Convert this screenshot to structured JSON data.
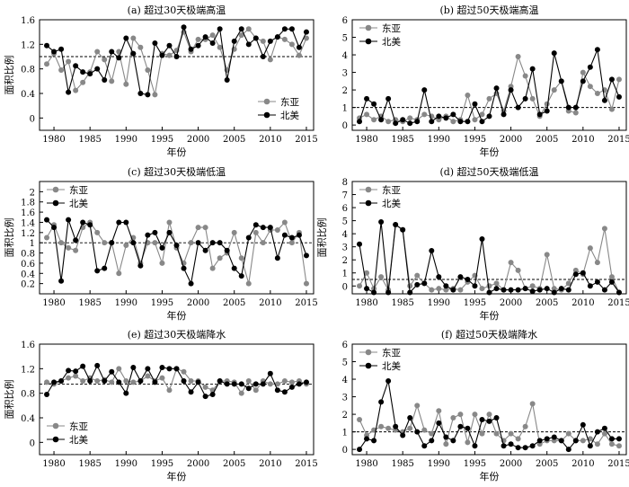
{
  "chart_data": [
    {
      "type": "line",
      "title": "(a) 超过30天极端高温",
      "xlabel": "年份",
      "ylabel": "面积比例",
      "xlim": [
        1978,
        2016
      ],
      "ylim": [
        -0.2,
        1.6
      ],
      "xticks": [
        1980,
        1985,
        1990,
        1995,
        2000,
        2005,
        2010,
        2015
      ],
      "yticks": [
        0,
        0.4,
        0.8,
        1.2,
        1.6
      ],
      "reference_line": 1.0,
      "legend": "bottom-right",
      "x": [
        1979,
        1980,
        1981,
        1982,
        1983,
        1984,
        1985,
        1986,
        1987,
        1988,
        1989,
        1990,
        1991,
        1992,
        1993,
        1994,
        1995,
        1996,
        1997,
        1998,
        1999,
        2000,
        2001,
        2002,
        2003,
        2004,
        2005,
        2006,
        2007,
        2008,
        2009,
        2010,
        2011,
        2012,
        2013,
        2014,
        2015
      ],
      "series": [
        {
          "name": "东亚",
          "color": "#888888",
          "values": [
            0.88,
            1.05,
            0.78,
            0.92,
            0.45,
            0.58,
            0.75,
            1.08,
            0.95,
            0.6,
            1.08,
            0.55,
            1.3,
            1.15,
            0.78,
            0.38,
            1.05,
            1.02,
            1.1,
            1.4,
            1.08,
            1.28,
            1.28,
            1.35,
            1.15,
            0.78,
            1.12,
            1.35,
            1.45,
            1.3,
            1.25,
            0.95,
            1.32,
            1.28,
            1.2,
            1.02,
            1.3
          ]
        },
        {
          "name": "北美",
          "color": "#000000",
          "values": [
            1.18,
            1.08,
            1.12,
            0.42,
            0.85,
            0.75,
            0.72,
            0.8,
            0.62,
            1.08,
            0.98,
            1.3,
            1.05,
            0.4,
            0.38,
            1.22,
            1.02,
            1.18,
            1.0,
            1.48,
            1.12,
            1.18,
            1.32,
            1.22,
            1.45,
            0.62,
            1.25,
            1.45,
            1.2,
            1.3,
            1.0,
            1.25,
            1.32,
            1.45,
            1.45,
            1.15,
            1.4
          ]
        }
      ]
    },
    {
      "type": "line",
      "title": "(b) 超过50天极端高温",
      "xlabel": "年份",
      "ylabel": "",
      "xlim": [
        1978,
        2016
      ],
      "ylim": [
        -0.3,
        6
      ],
      "xticks": [
        1980,
        1985,
        1990,
        1995,
        2000,
        2005,
        2010,
        2015
      ],
      "yticks": [
        0,
        1,
        2,
        3,
        4,
        5,
        6
      ],
      "reference_line": 1.0,
      "legend": "top-left",
      "x": [
        1979,
        1980,
        1981,
        1982,
        1983,
        1984,
        1985,
        1986,
        1987,
        1988,
        1989,
        1990,
        1991,
        1992,
        1993,
        1994,
        1995,
        1996,
        1997,
        1998,
        1999,
        2000,
        2001,
        2002,
        2003,
        2004,
        2005,
        2006,
        2007,
        2008,
        2009,
        2010,
        2011,
        2012,
        2013,
        2014,
        2015
      ],
      "series": [
        {
          "name": "东亚",
          "color": "#888888",
          "values": [
            0.4,
            0.6,
            0.3,
            0.5,
            0.2,
            0.3,
            0.2,
            0.4,
            0.3,
            0.6,
            0.5,
            0.3,
            0.5,
            0.2,
            0.3,
            1.7,
            0.3,
            0.6,
            1.5,
            1.8,
            0.8,
            2.2,
            3.9,
            2.8,
            1.5,
            0.5,
            1.2,
            2.0,
            2.5,
            0.8,
            0.7,
            3.0,
            2.2,
            1.8,
            2.0,
            0.9,
            2.6
          ]
        },
        {
          "name": "北美",
          "color": "#000000",
          "values": [
            0.2,
            1.5,
            1.2,
            0.3,
            1.5,
            0.1,
            0.3,
            0.1,
            0.2,
            2.0,
            0.2,
            0.5,
            0.4,
            0.6,
            0.2,
            0.2,
            1.2,
            0.2,
            0.5,
            2.1,
            0.6,
            2.0,
            1.0,
            1.5,
            3.2,
            0.6,
            0.8,
            4.1,
            2.5,
            1.0,
            1.0,
            2.5,
            3.3,
            4.3,
            1.4,
            2.6,
            1.6
          ]
        }
      ]
    },
    {
      "type": "line",
      "title": "(c) 超过30天极端低温",
      "xlabel": "年份",
      "ylabel": "面积比例",
      "xlim": [
        1978,
        2016
      ],
      "ylim": [
        0,
        2.2
      ],
      "xticks": [
        1980,
        1985,
        1990,
        1995,
        2000,
        2005,
        2010,
        2015
      ],
      "yticks": [
        0.2,
        0.4,
        0.6,
        0.8,
        1.0,
        1.2,
        1.4,
        1.6,
        1.8,
        2.0
      ],
      "reference_line": 1.0,
      "legend": "top-left",
      "x": [
        1979,
        1980,
        1981,
        1982,
        1983,
        1984,
        1985,
        1986,
        1987,
        1988,
        1989,
        1990,
        1991,
        1992,
        1993,
        1994,
        1995,
        1996,
        1997,
        1998,
        1999,
        2000,
        2001,
        2002,
        2003,
        2004,
        2005,
        2006,
        2007,
        2008,
        2009,
        2010,
        2011,
        2012,
        2013,
        2014,
        2015
      ],
      "series": [
        {
          "name": "东亚",
          "color": "#888888",
          "values": [
            1.1,
            1.35,
            1.0,
            0.9,
            0.85,
            1.3,
            1.4,
            1.2,
            1.0,
            1.0,
            0.4,
            0.95,
            1.1,
            0.6,
            1.0,
            1.0,
            0.6,
            1.4,
            0.9,
            0.6,
            1.0,
            1.3,
            1.3,
            0.5,
            0.7,
            0.8,
            1.2,
            0.7,
            0.2,
            1.2,
            1.0,
            1.25,
            1.25,
            1.4,
            1.0,
            1.2,
            0.2
          ]
        },
        {
          "name": "北美",
          "color": "#000000",
          "values": [
            1.45,
            1.3,
            0.25,
            1.45,
            1.05,
            1.4,
            1.35,
            0.45,
            0.5,
            1.0,
            1.4,
            1.4,
            1.0,
            0.55,
            1.15,
            1.2,
            0.9,
            1.2,
            0.95,
            0.5,
            0.2,
            1.0,
            0.85,
            1.0,
            1.0,
            0.85,
            0.5,
            0.35,
            1.1,
            1.35,
            1.3,
            1.3,
            0.7,
            1.15,
            1.1,
            1.15,
            0.75
          ]
        }
      ]
    },
    {
      "type": "line",
      "title": "(d) 超过50天极端低温",
      "xlabel": "年份",
      "ylabel": "面积比例",
      "xlim": [
        1978,
        2016
      ],
      "ylim": [
        -0.6,
        8
      ],
      "xticks": [
        1980,
        1985,
        1990,
        1995,
        2000,
        2005,
        2010,
        2015
      ],
      "yticks": [
        0,
        1,
        2,
        3,
        4,
        5,
        6,
        7,
        8
      ],
      "reference_line": 0.5,
      "legend": "top-left",
      "x": [
        1979,
        1980,
        1981,
        1982,
        1983,
        1984,
        1985,
        1986,
        1987,
        1988,
        1989,
        1990,
        1991,
        1992,
        1993,
        1994,
        1995,
        1996,
        1997,
        1998,
        1999,
        2000,
        2001,
        2002,
        2003,
        2004,
        2005,
        2006,
        2007,
        2008,
        2009,
        2010,
        2011,
        2012,
        2013,
        2014,
        2015
      ],
      "series": [
        {
          "name": "东亚",
          "color": "#888888",
          "values": [
            0.0,
            1.0,
            -0.2,
            0.7,
            -0.3,
            4.7,
            4.3,
            0.0,
            0.8,
            0.2,
            -0.3,
            -0.2,
            -0.3,
            -0.2,
            -0.3,
            0.3,
            0.8,
            -0.2,
            0.0,
            0.2,
            -0.3,
            1.8,
            1.2,
            -0.2,
            0.0,
            -0.2,
            2.4,
            -0.2,
            -0.3,
            0.2,
            1.2,
            0.9,
            2.9,
            1.8,
            4.4,
            0.7,
            -0.5
          ]
        },
        {
          "name": "北美",
          "color": "#000000",
          "values": [
            3.2,
            -0.2,
            -0.5,
            4.9,
            -0.5,
            4.7,
            4.3,
            -0.5,
            0.1,
            0.2,
            2.7,
            0.7,
            0.0,
            -0.3,
            0.7,
            0.5,
            0.0,
            3.6,
            -0.5,
            -0.2,
            -0.3,
            -0.3,
            -0.3,
            -0.2,
            -0.4,
            -0.3,
            -0.2,
            -0.5,
            -0.2,
            -0.3,
            0.9,
            1.0,
            0.0,
            0.3,
            -0.3,
            0.3,
            -0.5
          ]
        }
      ]
    },
    {
      "type": "line",
      "title": "(e) 超过30天极端降水",
      "xlabel": "年份",
      "ylabel": "面积比例",
      "xlim": [
        1978,
        2016
      ],
      "ylim": [
        -0.2,
        1.6
      ],
      "xticks": [
        1980,
        1985,
        1990,
        1995,
        2000,
        2005,
        2010,
        2015
      ],
      "yticks": [
        0,
        0.4,
        0.8,
        1.2,
        1.6
      ],
      "reference_line": 0.95,
      "legend": "bottom-left",
      "x": [
        1979,
        1980,
        1981,
        1982,
        1983,
        1984,
        1985,
        1986,
        1987,
        1988,
        1989,
        1990,
        1991,
        1992,
        1993,
        1994,
        1995,
        1996,
        1997,
        1998,
        1999,
        2000,
        2001,
        2002,
        2003,
        2004,
        2005,
        2006,
        2007,
        2008,
        2009,
        2010,
        2011,
        2012,
        2013,
        2014,
        2015
      ],
      "series": [
        {
          "name": "东亚",
          "color": "#888888",
          "values": [
            0.98,
            0.95,
            1.0,
            1.05,
            1.08,
            1.0,
            1.05,
            1.0,
            1.02,
            0.98,
            1.2,
            1.0,
            0.98,
            1.0,
            1.08,
            1.0,
            1.05,
            0.85,
            1.2,
            1.15,
            1.0,
            1.0,
            0.9,
            0.85,
            1.0,
            1.0,
            0.98,
            0.8,
            1.0,
            0.85,
            1.0,
            0.95,
            0.95,
            1.0,
            0.98,
            1.0,
            0.95
          ]
        },
        {
          "name": "北美",
          "color": "#000000",
          "values": [
            0.78,
            0.98,
            1.0,
            1.17,
            1.16,
            1.24,
            1.0,
            1.25,
            1.0,
            1.15,
            0.98,
            0.8,
            1.22,
            1.0,
            1.2,
            0.98,
            1.22,
            1.2,
            1.2,
            1.0,
            0.82,
            0.98,
            0.75,
            0.78,
            1.0,
            0.95,
            0.95,
            0.95,
            0.88,
            0.95,
            0.95,
            1.12,
            0.85,
            0.82,
            0.9,
            0.95,
            0.98
          ]
        }
      ]
    },
    {
      "type": "line",
      "title": "(f) 超过50天极端降水",
      "xlabel": "年份",
      "ylabel": "",
      "xlim": [
        1978,
        2016
      ],
      "ylim": [
        -0.3,
        6
      ],
      "xticks": [
        1980,
        1985,
        1990,
        1995,
        2000,
        2005,
        2010,
        2015
      ],
      "yticks": [
        0,
        1,
        2,
        3,
        4,
        5,
        6
      ],
      "reference_line": 1.0,
      "legend": "top-left",
      "x": [
        1979,
        1980,
        1981,
        1982,
        1983,
        1984,
        1985,
        1986,
        1987,
        1988,
        1989,
        1990,
        1991,
        1992,
        1993,
        1994,
        1995,
        1996,
        1997,
        1998,
        1999,
        2000,
        2001,
        2002,
        2003,
        2004,
        2005,
        2006,
        2007,
        2008,
        2009,
        2010,
        2011,
        2012,
        2013,
        2014,
        2015
      ],
      "series": [
        {
          "name": "东亚",
          "color": "#888888",
          "values": [
            1.7,
            0.8,
            1.1,
            1.3,
            1.2,
            1.1,
            1.0,
            1.2,
            2.5,
            1.1,
            0.9,
            2.2,
            0.3,
            1.8,
            2.0,
            0.4,
            2.0,
            0.9,
            2.0,
            0.9,
            0.5,
            0.9,
            0.6,
            1.3,
            2.6,
            0.3,
            0.5,
            0.5,
            0.5,
            0.9,
            0.5,
            0.5,
            0.6,
            0.3,
            0.9,
            0.3,
            0.2
          ]
        },
        {
          "name": "北美",
          "color": "#000000",
          "values": [
            0.0,
            0.6,
            0.5,
            2.7,
            3.9,
            1.3,
            0.8,
            1.8,
            1.0,
            0.2,
            0.5,
            1.5,
            0.7,
            0.5,
            1.3,
            1.2,
            0.2,
            1.7,
            1.6,
            1.8,
            0.2,
            0.3,
            0.1,
            0.1,
            0.2,
            0.5,
            0.6,
            0.7,
            0.5,
            0.0,
            0.5,
            1.4,
            0.2,
            1.0,
            1.2,
            0.6,
            0.6
          ]
        }
      ]
    }
  ]
}
